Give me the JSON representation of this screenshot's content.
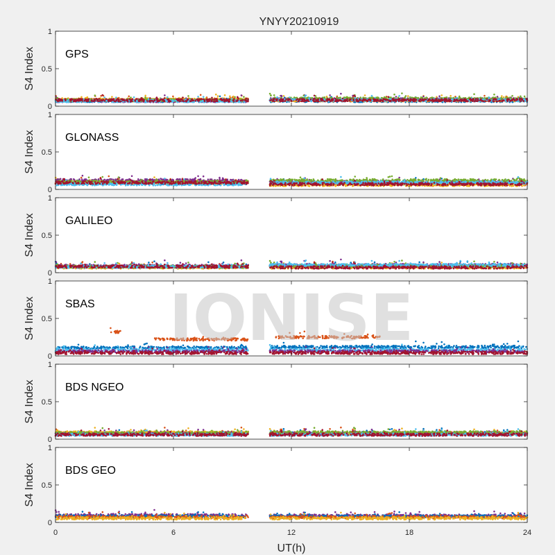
{
  "chart_data": {
    "type": "scatter",
    "title": "YNYY20210919",
    "xlabel": "UT(h)",
    "ylabel": "S4 Index",
    "xlim": [
      0,
      24
    ],
    "ylim": [
      0,
      1
    ],
    "x_ticks": [
      "0",
      "6",
      "12",
      "18",
      "24"
    ],
    "y_ticks": [
      "0",
      "0.5",
      "1"
    ],
    "data_gap_hours": [
      9.8,
      10.9
    ],
    "watermark": "IONISE",
    "panels": [
      {
        "label": "GPS",
        "series": [
          {
            "color": "#0072BD",
            "segments": [
              [
                0,
                9.8,
                0.07
              ],
              [
                10.9,
                24,
                0.07
              ]
            ]
          },
          {
            "color": "#D95319",
            "segments": [
              [
                0,
                9.8,
                0.08
              ],
              [
                10.9,
                24,
                0.08
              ]
            ]
          },
          {
            "color": "#EDB120",
            "segments": [
              [
                0,
                9.8,
                0.09
              ],
              [
                10.9,
                24,
                0.08
              ]
            ]
          },
          {
            "color": "#7E2F8E",
            "segments": [
              [
                0,
                9.8,
                0.07
              ],
              [
                10.9,
                24,
                0.09
              ]
            ]
          },
          {
            "color": "#77AC30",
            "segments": [
              [
                0,
                9.8,
                0.08
              ],
              [
                10.9,
                24,
                0.1
              ]
            ]
          },
          {
            "color": "#4DBEEE",
            "segments": [
              [
                0,
                9.8,
                0.07
              ],
              [
                10.9,
                24,
                0.08
              ]
            ]
          },
          {
            "color": "#A2142F",
            "segments": [
              [
                0,
                9.8,
                0.08
              ],
              [
                10.9,
                24,
                0.08
              ]
            ]
          }
        ]
      },
      {
        "label": "GLONASS",
        "series": [
          {
            "color": "#0072BD",
            "segments": [
              [
                0,
                9.8,
                0.08
              ],
              [
                10.9,
                24,
                0.08
              ]
            ]
          },
          {
            "color": "#D95319",
            "segments": [
              [
                0,
                9.8,
                0.1
              ],
              [
                10.9,
                24,
                0.07
              ]
            ]
          },
          {
            "color": "#EDB120",
            "segments": [
              [
                0,
                9.8,
                0.09
              ],
              [
                10.9,
                24,
                0.06
              ]
            ]
          },
          {
            "color": "#7E2F8E",
            "segments": [
              [
                0,
                9.8,
                0.12
              ],
              [
                10.9,
                24,
                0.1
              ]
            ]
          },
          {
            "color": "#77AC30",
            "segments": [
              [
                0,
                9.8,
                0.1
              ],
              [
                10.9,
                24,
                0.12
              ]
            ]
          },
          {
            "color": "#4DBEEE",
            "segments": [
              [
                0,
                9.8,
                0.07
              ],
              [
                10.9,
                24,
                0.09
              ]
            ]
          },
          {
            "color": "#A2142F",
            "segments": [
              [
                0,
                9.8,
                0.09
              ],
              [
                10.9,
                24,
                0.07
              ]
            ]
          }
        ]
      },
      {
        "label": "GALILEO",
        "series": [
          {
            "color": "#0072BD",
            "segments": [
              [
                0,
                9.8,
                0.08
              ],
              [
                10.9,
                24,
                0.09
              ]
            ]
          },
          {
            "color": "#D95319",
            "segments": [
              [
                0,
                9.8,
                0.08
              ],
              [
                10.9,
                24,
                0.08
              ]
            ]
          },
          {
            "color": "#EDB120",
            "segments": [
              [
                0,
                9.8,
                0.07
              ],
              [
                10.9,
                24,
                0.07
              ]
            ]
          },
          {
            "color": "#7E2F8E",
            "segments": [
              [
                0,
                9.8,
                0.09
              ],
              [
                10.9,
                24,
                0.1
              ]
            ]
          },
          {
            "color": "#77AC30",
            "segments": [
              [
                0,
                9.8,
                0.08
              ],
              [
                10.9,
                24,
                0.09
              ]
            ]
          },
          {
            "color": "#4DBEEE",
            "segments": [
              [
                0,
                9.8,
                0.08
              ],
              [
                10.9,
                24,
                0.1
              ]
            ]
          },
          {
            "color": "#A2142F",
            "segments": [
              [
                0,
                9.8,
                0.08
              ],
              [
                10.9,
                24,
                0.07
              ]
            ]
          }
        ]
      },
      {
        "label": "SBAS",
        "series": [
          {
            "color": "#0072BD",
            "segments": [
              [
                0,
                9.8,
                0.11
              ],
              [
                10.9,
                24,
                0.12
              ]
            ]
          },
          {
            "color": "#D95319",
            "segments": [
              [
                2.8,
                3.3,
                0.32
              ],
              [
                5.0,
                9.8,
                0.22
              ],
              [
                11.2,
                16.5,
                0.25
              ]
            ]
          },
          {
            "color": "#4DBEEE",
            "segments": [
              [
                0,
                9.8,
                0.08
              ],
              [
                10.9,
                24,
                0.08
              ]
            ]
          },
          {
            "color": "#7E2F8E",
            "segments": [
              [
                0,
                9.8,
                0.06
              ],
              [
                10.9,
                24,
                0.06
              ]
            ]
          },
          {
            "color": "#A2142F",
            "segments": [
              [
                0,
                9.8,
                0.04
              ],
              [
                10.9,
                24,
                0.04
              ]
            ]
          }
        ]
      },
      {
        "label": "BDS NGEO",
        "series": [
          {
            "color": "#0072BD",
            "segments": [
              [
                0,
                9.8,
                0.07
              ],
              [
                10.9,
                24,
                0.08
              ]
            ]
          },
          {
            "color": "#D95319",
            "segments": [
              [
                0,
                9.8,
                0.08
              ],
              [
                10.9,
                24,
                0.08
              ]
            ]
          },
          {
            "color": "#EDB120",
            "segments": [
              [
                0,
                9.8,
                0.09
              ],
              [
                10.9,
                24,
                0.07
              ]
            ]
          },
          {
            "color": "#7E2F8E",
            "segments": [
              [
                0,
                9.8,
                0.07
              ],
              [
                10.9,
                24,
                0.07
              ]
            ]
          },
          {
            "color": "#77AC30",
            "segments": [
              [
                0,
                9.8,
                0.08
              ],
              [
                10.9,
                24,
                0.09
              ]
            ]
          },
          {
            "color": "#4DBEEE",
            "segments": [
              [
                0,
                9.8,
                0.06
              ],
              [
                10.9,
                24,
                0.06
              ]
            ]
          },
          {
            "color": "#A2142F",
            "segments": [
              [
                0,
                9.8,
                0.06
              ],
              [
                10.9,
                24,
                0.06
              ]
            ]
          }
        ]
      },
      {
        "label": "BDS GEO",
        "series": [
          {
            "color": "#7E2F8E",
            "segments": [
              [
                0,
                9.8,
                0.095
              ],
              [
                10.9,
                24,
                0.09
              ]
            ]
          },
          {
            "color": "#0072BD",
            "segments": [
              [
                0,
                9.8,
                0.08
              ],
              [
                10.9,
                24,
                0.08
              ]
            ]
          },
          {
            "color": "#D95319",
            "segments": [
              [
                0,
                9.8,
                0.07
              ],
              [
                10.9,
                24,
                0.07
              ]
            ]
          },
          {
            "color": "#EDB120",
            "segments": [
              [
                0,
                9.8,
                0.055
              ],
              [
                10.9,
                24,
                0.055
              ]
            ]
          }
        ]
      }
    ]
  }
}
